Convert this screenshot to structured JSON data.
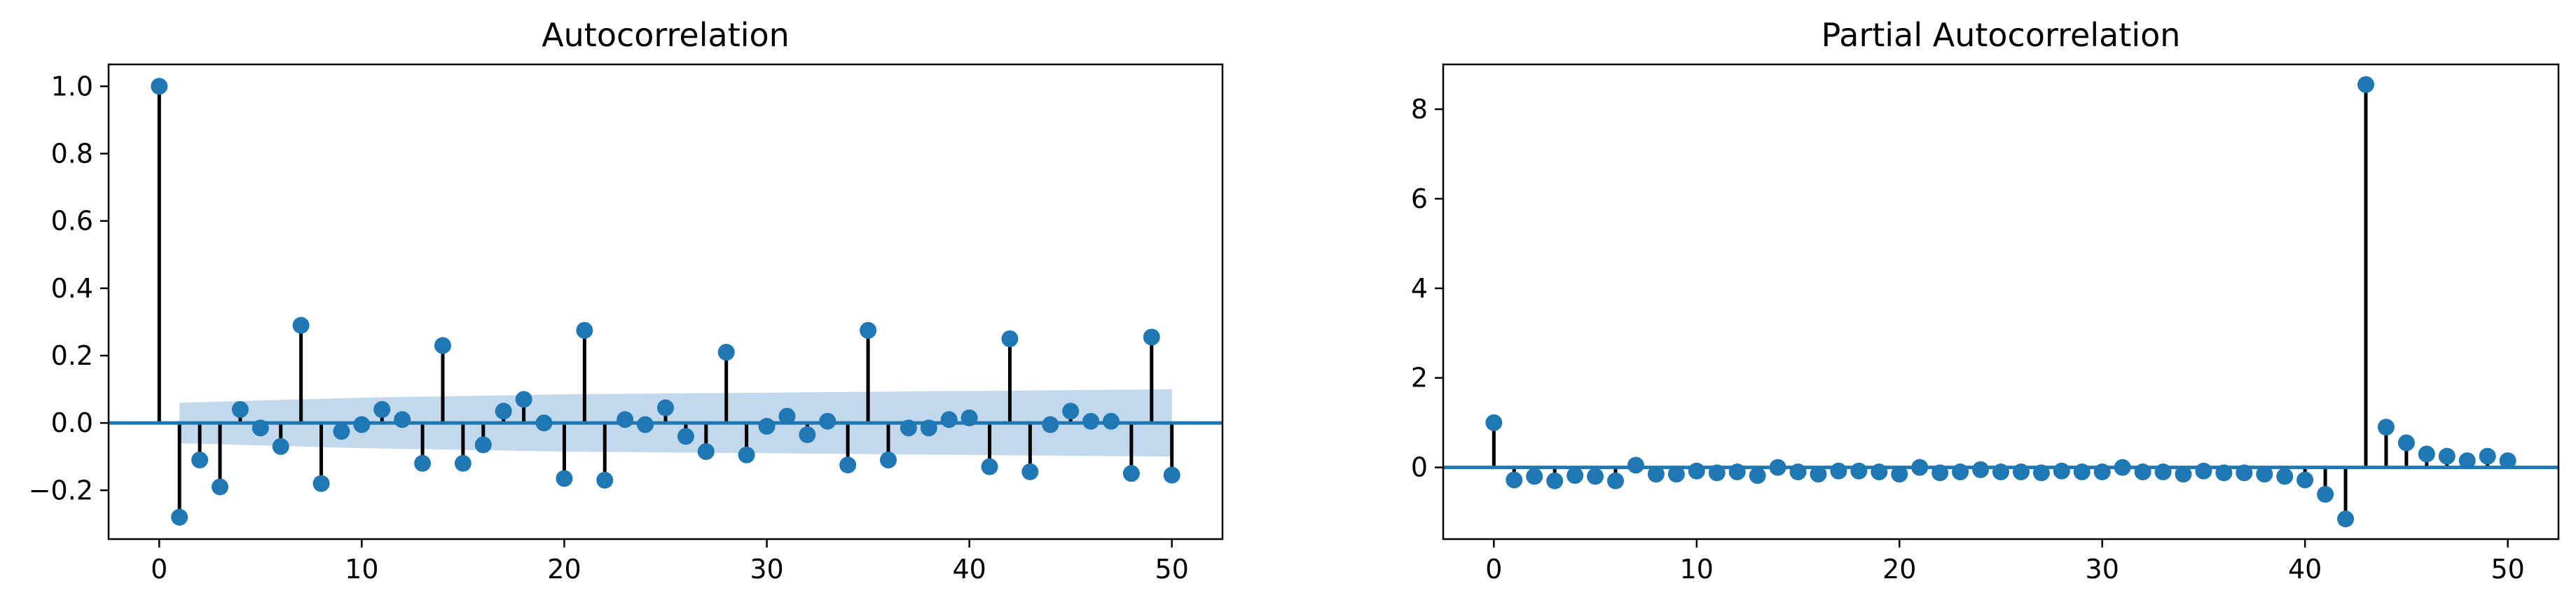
{
  "colors": {
    "marker": "#1f77b4",
    "stem": "#000000",
    "baseline": "#1f77b4",
    "confint": "#c2d8ec",
    "axes": "#000000"
  },
  "chart_data": [
    {
      "type": "stem",
      "title": "Autocorrelation",
      "xlabel": "",
      "ylabel": "",
      "xlim": [
        -2.5,
        52.5
      ],
      "ylim": [
        -0.345,
        1.065
      ],
      "xticks": [
        0,
        10,
        20,
        30,
        40,
        50
      ],
      "yticks": [
        -0.2,
        0.0,
        0.2,
        0.4,
        0.6,
        0.8,
        1.0
      ],
      "ytick_labels": [
        "−0.2",
        "0.0",
        "0.2",
        "0.4",
        "0.6",
        "0.8",
        "1.0"
      ],
      "lags": [
        0,
        1,
        2,
        3,
        4,
        5,
        6,
        7,
        8,
        9,
        10,
        11,
        12,
        13,
        14,
        15,
        16,
        17,
        18,
        19,
        20,
        21,
        22,
        23,
        24,
        25,
        26,
        27,
        28,
        29,
        30,
        31,
        32,
        33,
        34,
        35,
        36,
        37,
        38,
        39,
        40,
        41,
        42,
        43,
        44,
        45,
        46,
        47,
        48,
        49,
        50
      ],
      "values": [
        1.0,
        -0.28,
        -0.11,
        -0.19,
        0.04,
        -0.015,
        -0.07,
        0.29,
        -0.18,
        -0.025,
        -0.005,
        0.04,
        0.01,
        -0.12,
        0.23,
        -0.12,
        -0.065,
        0.035,
        0.07,
        0.0,
        -0.165,
        0.275,
        -0.17,
        0.01,
        -0.005,
        0.045,
        -0.04,
        -0.085,
        0.21,
        -0.095,
        -0.01,
        0.02,
        -0.035,
        0.005,
        -0.125,
        0.275,
        -0.11,
        -0.015,
        -0.015,
        0.01,
        0.015,
        -0.13,
        0.25,
        -0.145,
        -0.005,
        0.035,
        0.005,
        0.005,
        -0.15,
        0.255,
        -0.155
      ],
      "confint": {
        "lags": [
          1,
          10,
          20,
          30,
          40,
          50
        ],
        "upper": [
          0.06,
          0.075,
          0.085,
          0.09,
          0.095,
          0.1
        ],
        "lower": [
          -0.06,
          -0.075,
          -0.085,
          -0.09,
          -0.095,
          -0.1
        ]
      }
    },
    {
      "type": "stem",
      "title": "Partial Autocorrelation",
      "xlabel": "",
      "ylabel": "",
      "xlim": [
        -2.5,
        52.5
      ],
      "ylim": [
        -1.6,
        9.0
      ],
      "xticks": [
        0,
        10,
        20,
        30,
        40,
        50
      ],
      "yticks": [
        0,
        2,
        4,
        6,
        8
      ],
      "ytick_labels": [
        "0",
        "2",
        "4",
        "6",
        "8"
      ],
      "lags": [
        0,
        1,
        2,
        3,
        4,
        5,
        6,
        7,
        8,
        9,
        10,
        11,
        12,
        13,
        14,
        15,
        16,
        17,
        18,
        19,
        20,
        21,
        22,
        23,
        24,
        25,
        26,
        27,
        28,
        29,
        30,
        31,
        32,
        33,
        34,
        35,
        36,
        37,
        38,
        39,
        40,
        41,
        42,
        43,
        44,
        45,
        46,
        47,
        48,
        49,
        50
      ],
      "values": [
        1.0,
        -0.28,
        -0.2,
        -0.3,
        -0.18,
        -0.2,
        -0.3,
        0.05,
        -0.15,
        -0.15,
        -0.08,
        -0.12,
        -0.1,
        -0.18,
        0.0,
        -0.1,
        -0.15,
        -0.08,
        -0.08,
        -0.1,
        -0.15,
        0.0,
        -0.12,
        -0.1,
        -0.05,
        -0.1,
        -0.1,
        -0.12,
        -0.08,
        -0.1,
        -0.1,
        0.0,
        -0.1,
        -0.1,
        -0.15,
        -0.08,
        -0.12,
        -0.12,
        -0.15,
        -0.2,
        -0.28,
        -0.6,
        -1.15,
        8.55,
        0.9,
        0.55,
        0.3,
        0.25,
        0.15,
        0.25,
        0.15
      ]
    }
  ]
}
